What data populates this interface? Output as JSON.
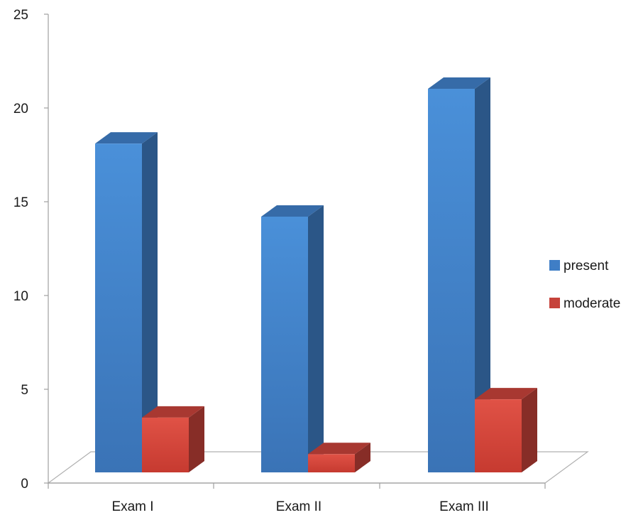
{
  "chart_data": {
    "type": "bar",
    "style": "3d-column",
    "categories": [
      "Exam I",
      "Exam II",
      "Exam III"
    ],
    "series": [
      {
        "name": "present",
        "values": [
          18,
          14,
          21
        ],
        "color": "#3f7ec6"
      },
      {
        "name": "moderate",
        "values": [
          3,
          1,
          4
        ],
        "color": "#c6423a"
      }
    ],
    "ylim": [
      0,
      25
    ],
    "yticks": [
      "0",
      "5",
      "10",
      "15",
      "20",
      "25"
    ],
    "grid": false,
    "legend_position": "right"
  }
}
